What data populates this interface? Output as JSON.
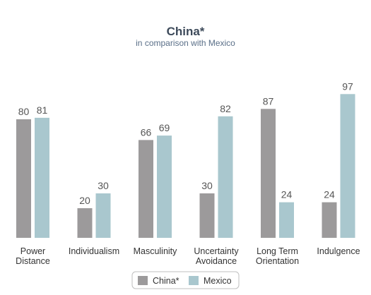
{
  "chart_data": {
    "type": "bar",
    "title": "China*",
    "subtitle": "in comparison with Mexico",
    "categories": [
      [
        "Power",
        "Distance"
      ],
      [
        "Individualism"
      ],
      [
        "Masculinity"
      ],
      [
        "Uncertainty",
        "Avoidance"
      ],
      [
        "Long Term",
        "Orientation"
      ],
      [
        "Indulgence"
      ]
    ],
    "series": [
      {
        "name": "China*",
        "color": "#9c9a9b",
        "values": [
          80,
          20,
          66,
          30,
          87,
          24
        ]
      },
      {
        "name": "Mexico",
        "color": "#a9c7ce",
        "values": [
          81,
          30,
          69,
          82,
          24,
          97
        ]
      }
    ],
    "ylim": [
      0,
      100
    ],
    "grid": false,
    "legend_position": "bottom-center"
  }
}
